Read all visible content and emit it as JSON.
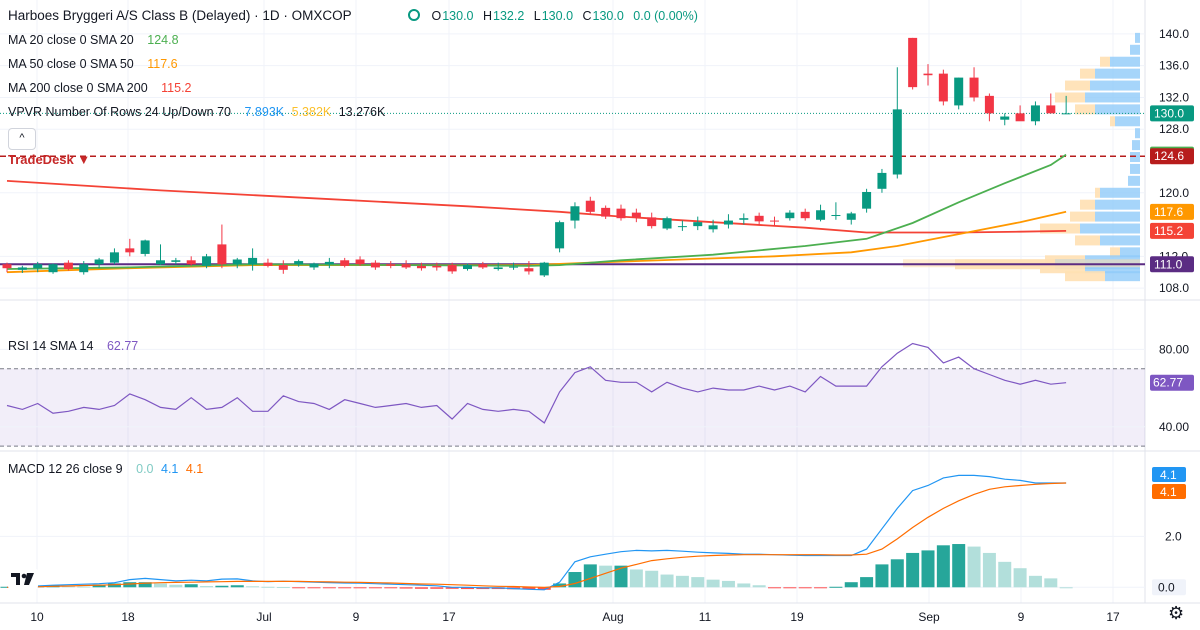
{
  "header": {
    "title": "Harboes Bryggeri A/S Class B (Delayed) · 1D · OMXCOP",
    "ohlc": [
      {
        "label": "O",
        "value": "130.0"
      },
      {
        "label": "H",
        "value": "132.2"
      },
      {
        "label": "L",
        "value": "130.0"
      },
      {
        "label": "C",
        "value": "130.0"
      }
    ],
    "change": "0.0 (0.00%)"
  },
  "legend": {
    "ma20": {
      "label": "MA 20 close 0 SMA 20",
      "value": "124.8",
      "color": "#4caf50"
    },
    "ma50": {
      "label": "MA 50 close 0 SMA 50",
      "value": "117.6",
      "color": "#ff9800"
    },
    "ma200": {
      "label": "MA 200 close 0 SMA 200",
      "value": "115.2",
      "color": "#f44336"
    },
    "vpvr": {
      "label": "VPVR Number Of Rows 24 Up/Down 70",
      "up": "7.893K",
      "down": "5.382K",
      "total": "13.276K"
    },
    "rsi": {
      "label": "RSI 14 SMA 14",
      "value": "62.77",
      "color": "#7e57c2"
    },
    "macd": {
      "label": "MACD 12 26 close 9",
      "hist": "0.0",
      "macd": "4.1",
      "signal": "4.1"
    }
  },
  "collapse_label": "^",
  "tradedesk_label": "TradeDesk ▼",
  "colors": {
    "up": "#089981",
    "down": "#f23645",
    "macd": "#2196f3",
    "signal": "#ff6d00",
    "rsi": "#7e57c2",
    "vp_up": "#90caf9",
    "vp_down": "#ffe0b2"
  },
  "chart_data": {
    "type": "candlestick",
    "title": "Harboes Bryggeri A/S Class B (Delayed) · 1D · OMXCOP",
    "x_tick_labels": [
      "10",
      "18",
      "Jul",
      "9",
      "17",
      "Aug",
      "11",
      "19",
      "Sep",
      "9",
      "17"
    ],
    "y_tick_labels": [
      "140.0",
      "136.0",
      "132.0",
      "128.0",
      "120.0",
      "112.0",
      "108.0"
    ],
    "ylim": [
      106.5,
      141.5
    ],
    "price_axis_badges": [
      {
        "text": "130.0",
        "value": 130.0,
        "color": "#089981"
      },
      {
        "text": "124.8",
        "value": 124.8,
        "color": "#4caf50"
      },
      {
        "text": "124.6",
        "value": 124.6,
        "color": "#b71c1c"
      },
      {
        "text": "117.6",
        "value": 117.6,
        "color": "#ff9800"
      },
      {
        "text": "115.2",
        "value": 115.2,
        "color": "#f44336"
      },
      {
        "text": "111.0",
        "value": 111.0,
        "color": "#5b2c83"
      }
    ],
    "horizontal_lines": [
      {
        "name": "TradeDesk",
        "value": 124.6,
        "style": "dashed",
        "color": "#b71c1c"
      },
      {
        "name": "level",
        "value": 111.0,
        "style": "solid",
        "color": "#5b2c83"
      }
    ],
    "candles": [
      {
        "o": 111.0,
        "h": 111.2,
        "l": 110.0,
        "c": 110.5
      },
      {
        "o": 110.3,
        "h": 110.8,
        "l": 109.9,
        "c": 110.6
      },
      {
        "o": 110.5,
        "h": 111.3,
        "l": 110.0,
        "c": 111.0
      },
      {
        "o": 110.0,
        "h": 111.1,
        "l": 109.8,
        "c": 111.0
      },
      {
        "o": 111.2,
        "h": 111.5,
        "l": 110.2,
        "c": 110.4
      },
      {
        "o": 110.0,
        "h": 111.4,
        "l": 109.7,
        "c": 111.0
      },
      {
        "o": 111.0,
        "h": 111.8,
        "l": 110.5,
        "c": 111.6
      },
      {
        "o": 111.2,
        "h": 113.0,
        "l": 111.0,
        "c": 112.5
      },
      {
        "o": 113.0,
        "h": 114.2,
        "l": 112.0,
        "c": 112.5
      },
      {
        "o": 112.3,
        "h": 114.1,
        "l": 112.0,
        "c": 114.0
      },
      {
        "o": 111.0,
        "h": 113.5,
        "l": 110.9,
        "c": 111.5
      },
      {
        "o": 111.3,
        "h": 111.8,
        "l": 111.0,
        "c": 111.5
      },
      {
        "o": 111.5,
        "h": 112.0,
        "l": 110.8,
        "c": 111.0
      },
      {
        "o": 110.8,
        "h": 112.3,
        "l": 110.5,
        "c": 112.0
      },
      {
        "o": 113.5,
        "h": 116.0,
        "l": 110.5,
        "c": 111.0
      },
      {
        "o": 111.0,
        "h": 111.8,
        "l": 110.5,
        "c": 111.6
      },
      {
        "o": 111.0,
        "h": 113.0,
        "l": 110.2,
        "c": 111.8
      },
      {
        "o": 111.2,
        "h": 111.7,
        "l": 110.6,
        "c": 110.8
      },
      {
        "o": 110.9,
        "h": 111.5,
        "l": 109.8,
        "c": 110.3
      },
      {
        "o": 111.0,
        "h": 111.6,
        "l": 110.7,
        "c": 111.4
      },
      {
        "o": 110.6,
        "h": 111.2,
        "l": 110.3,
        "c": 111.1
      },
      {
        "o": 111.0,
        "h": 111.8,
        "l": 110.5,
        "c": 111.3
      },
      {
        "o": 111.5,
        "h": 111.8,
        "l": 110.6,
        "c": 110.8
      },
      {
        "o": 111.6,
        "h": 112.0,
        "l": 110.8,
        "c": 111.0
      },
      {
        "o": 111.2,
        "h": 111.5,
        "l": 110.3,
        "c": 110.6
      },
      {
        "o": 111.0,
        "h": 111.4,
        "l": 110.5,
        "c": 110.8
      },
      {
        "o": 111.0,
        "h": 111.5,
        "l": 110.4,
        "c": 110.6
      },
      {
        "o": 110.8,
        "h": 111.2,
        "l": 110.2,
        "c": 110.5
      },
      {
        "o": 110.8,
        "h": 111.2,
        "l": 110.2,
        "c": 110.6
      },
      {
        "o": 110.9,
        "h": 111.2,
        "l": 109.8,
        "c": 110.1
      },
      {
        "o": 110.4,
        "h": 111.1,
        "l": 110.2,
        "c": 110.9
      },
      {
        "o": 111.0,
        "h": 111.3,
        "l": 110.4,
        "c": 110.6
      },
      {
        "o": 110.4,
        "h": 111.2,
        "l": 110.2,
        "c": 110.6
      },
      {
        "o": 110.6,
        "h": 111.2,
        "l": 110.3,
        "c": 110.7
      },
      {
        "o": 110.5,
        "h": 111.4,
        "l": 109.7,
        "c": 110.1
      },
      {
        "o": 109.6,
        "h": 111.3,
        "l": 109.4,
        "c": 111.2
      },
      {
        "o": 113.0,
        "h": 116.5,
        "l": 112.5,
        "c": 116.3
      },
      {
        "o": 116.5,
        "h": 118.8,
        "l": 115.5,
        "c": 118.3
      },
      {
        "o": 119.0,
        "h": 119.5,
        "l": 117.2,
        "c": 117.6
      },
      {
        "o": 118.1,
        "h": 118.4,
        "l": 116.7,
        "c": 117.0
      },
      {
        "o": 118.0,
        "h": 118.5,
        "l": 116.5,
        "c": 116.8
      },
      {
        "o": 117.5,
        "h": 118.0,
        "l": 116.3,
        "c": 116.9
      },
      {
        "o": 116.9,
        "h": 117.5,
        "l": 115.5,
        "c": 115.8
      },
      {
        "o": 115.5,
        "h": 117.0,
        "l": 115.3,
        "c": 116.8
      },
      {
        "o": 115.7,
        "h": 116.5,
        "l": 115.2,
        "c": 115.8
      },
      {
        "o": 115.8,
        "h": 117.0,
        "l": 115.3,
        "c": 116.3
      },
      {
        "o": 115.4,
        "h": 116.6,
        "l": 115.0,
        "c": 115.9
      },
      {
        "o": 116.0,
        "h": 117.3,
        "l": 115.5,
        "c": 116.5
      },
      {
        "o": 116.6,
        "h": 117.4,
        "l": 116.0,
        "c": 116.8
      },
      {
        "o": 117.1,
        "h": 117.5,
        "l": 116.0,
        "c": 116.4
      },
      {
        "o": 116.5,
        "h": 117.0,
        "l": 115.8,
        "c": 116.4
      },
      {
        "o": 116.8,
        "h": 117.8,
        "l": 116.5,
        "c": 117.5
      },
      {
        "o": 117.6,
        "h": 118.0,
        "l": 116.5,
        "c": 116.8
      },
      {
        "o": 116.6,
        "h": 118.5,
        "l": 116.4,
        "c": 117.8
      },
      {
        "o": 117.2,
        "h": 118.8,
        "l": 116.6,
        "c": 117.2
      },
      {
        "o": 116.6,
        "h": 117.6,
        "l": 116.0,
        "c": 117.4
      },
      {
        "o": 118.0,
        "h": 120.5,
        "l": 117.5,
        "c": 120.1
      },
      {
        "o": 120.5,
        "h": 123.0,
        "l": 120.0,
        "c": 122.5
      },
      {
        "o": 122.3,
        "h": 135.8,
        "l": 121.8,
        "c": 130.5
      },
      {
        "o": 139.5,
        "h": 139.5,
        "l": 133.0,
        "c": 133.3
      },
      {
        "o": 135.0,
        "h": 136.2,
        "l": 133.5,
        "c": 134.8
      },
      {
        "o": 135.0,
        "h": 135.5,
        "l": 131.0,
        "c": 131.5
      },
      {
        "o": 131.0,
        "h": 134.5,
        "l": 130.5,
        "c": 134.5
      },
      {
        "o": 134.5,
        "h": 135.8,
        "l": 131.5,
        "c": 132.0
      },
      {
        "o": 132.2,
        "h": 132.5,
        "l": 129.0,
        "c": 130.0
      },
      {
        "o": 129.2,
        "h": 130.0,
        "l": 128.5,
        "c": 129.6
      },
      {
        "o": 130.0,
        "h": 131.0,
        "l": 129.2,
        "c": 129.0
      },
      {
        "o": 129.0,
        "h": 131.5,
        "l": 128.5,
        "c": 131.0
      },
      {
        "o": 131.0,
        "h": 132.5,
        "l": 130.0,
        "c": 130.0
      },
      {
        "o": 130.0,
        "h": 132.2,
        "l": 130.0,
        "c": 130.0
      }
    ],
    "ma20": [
      [
        0,
        110.4
      ],
      [
        8,
        110.6
      ],
      [
        16,
        111.0
      ],
      [
        26,
        110.9
      ],
      [
        34,
        110.8
      ],
      [
        36,
        110.9
      ],
      [
        40,
        111.5
      ],
      [
        46,
        112.2
      ],
      [
        52,
        113.3
      ],
      [
        56,
        114.2
      ],
      [
        59,
        116.2
      ],
      [
        62,
        118.8
      ],
      [
        65,
        121.2
      ],
      [
        68,
        123.5
      ],
      [
        69,
        124.8
      ]
    ],
    "ma50": [
      [
        0,
        110.0
      ],
      [
        8,
        110.5
      ],
      [
        16,
        110.9
      ],
      [
        26,
        110.9
      ],
      [
        34,
        110.9
      ],
      [
        38,
        111.2
      ],
      [
        44,
        111.6
      ],
      [
        50,
        112.0
      ],
      [
        55,
        112.5
      ],
      [
        58,
        113.3
      ],
      [
        62,
        114.8
      ],
      [
        66,
        116.3
      ],
      [
        69,
        117.6
      ]
    ],
    "ma200": [
      [
        0,
        121.5
      ],
      [
        10,
        120.3
      ],
      [
        20,
        119.3
      ],
      [
        30,
        118.3
      ],
      [
        36,
        117.6
      ],
      [
        40,
        117.0
      ],
      [
        46,
        116.3
      ],
      [
        52,
        115.6
      ],
      [
        56,
        115.0
      ],
      [
        62,
        115.0
      ],
      [
        66,
        115.1
      ],
      [
        69,
        115.2
      ]
    ],
    "volume_profile": [
      {
        "price": 139.5,
        "up": 0.05,
        "down": 0.0
      },
      {
        "price": 138.0,
        "up": 0.1,
        "down": 0.0
      },
      {
        "price": 136.5,
        "up": 0.3,
        "down": 0.1
      },
      {
        "price": 135.0,
        "up": 0.45,
        "down": 0.15
      },
      {
        "price": 133.5,
        "up": 0.5,
        "down": 0.25
      },
      {
        "price": 132.0,
        "up": 0.55,
        "down": 0.3
      },
      {
        "price": 130.5,
        "up": 0.45,
        "down": 0.2
      },
      {
        "price": 129.0,
        "up": 0.25,
        "down": 0.05
      },
      {
        "price": 127.5,
        "up": 0.05,
        "down": 0.0
      },
      {
        "price": 126.0,
        "up": 0.08,
        "down": 0.0
      },
      {
        "price": 124.5,
        "up": 0.1,
        "down": 0.0
      },
      {
        "price": 123.0,
        "up": 0.1,
        "down": 0.0
      },
      {
        "price": 121.5,
        "up": 0.12,
        "down": 0.0
      },
      {
        "price": 120.0,
        "up": 0.4,
        "down": 0.05
      },
      {
        "price": 118.5,
        "up": 0.45,
        "down": 0.15
      },
      {
        "price": 117.0,
        "up": 0.45,
        "down": 0.25
      },
      {
        "price": 115.5,
        "up": 0.6,
        "down": 0.4
      },
      {
        "price": 114.0,
        "up": 0.4,
        "down": 0.25
      },
      {
        "price": 112.5,
        "up": 0.2,
        "down": 0.1
      },
      {
        "price": 111.5,
        "up": 0.55,
        "down": 0.4
      },
      {
        "price": 111.0,
        "up": 0.85,
        "down": 1.0
      },
      {
        "price": 110.5,
        "up": 0.55,
        "down": 0.45
      },
      {
        "price": 109.5,
        "up": 0.35,
        "down": 0.4
      }
    ],
    "rsi": {
      "name": "RSI",
      "ylim": [
        28,
        90
      ],
      "y_tick_labels": [
        "80.00",
        "40.00"
      ],
      "bands": [
        70,
        30
      ],
      "values": [
        51,
        49,
        52,
        47,
        48,
        50,
        49,
        51,
        57,
        54,
        50,
        49,
        55,
        49,
        50,
        55,
        48,
        48,
        56,
        53,
        52,
        49,
        54,
        52,
        50,
        51,
        52,
        50,
        51,
        44,
        52,
        49,
        48,
        49,
        48,
        42,
        58,
        68,
        71,
        64,
        63,
        63,
        58,
        63,
        60,
        58,
        60,
        59,
        59,
        61,
        59,
        61,
        58,
        66,
        61,
        61,
        61,
        71,
        78,
        83,
        81,
        73,
        76,
        70,
        67,
        64,
        62,
        64,
        62,
        62.77
      ]
    },
    "macd": {
      "name": "MACD",
      "ylim": [
        -0.5,
        5.2
      ],
      "y_tick_labels": [
        "2.0",
        "0.0"
      ],
      "macd_line": [
        0.0,
        0.02,
        0.05,
        0.08,
        0.1,
        0.12,
        0.14,
        0.18,
        0.3,
        0.35,
        0.3,
        0.25,
        0.28,
        0.25,
        0.32,
        0.33,
        0.25,
        0.22,
        0.24,
        0.22,
        0.2,
        0.18,
        0.17,
        0.16,
        0.14,
        0.12,
        0.1,
        0.08,
        0.06,
        0.0,
        0.0,
        -0.02,
        -0.02,
        -0.05,
        -0.08,
        -0.1,
        0.2,
        1.0,
        1.2,
        1.3,
        1.4,
        1.45,
        1.43,
        1.45,
        1.42,
        1.38,
        1.35,
        1.33,
        1.3,
        1.3,
        1.28,
        1.26,
        1.25,
        1.25,
        1.25,
        1.25,
        1.5,
        2.3,
        3.1,
        3.8,
        4.0,
        4.3,
        4.4,
        4.4,
        4.35,
        4.25,
        4.2,
        4.1,
        4.1,
        4.1
      ],
      "signal_line": [
        0.0,
        0.01,
        0.02,
        0.04,
        0.05,
        0.07,
        0.08,
        0.1,
        0.13,
        0.16,
        0.18,
        0.19,
        0.2,
        0.21,
        0.22,
        0.23,
        0.23,
        0.23,
        0.23,
        0.23,
        0.22,
        0.21,
        0.2,
        0.19,
        0.18,
        0.17,
        0.15,
        0.13,
        0.12,
        0.1,
        0.08,
        0.06,
        0.04,
        0.03,
        0.01,
        0.0,
        0.03,
        0.15,
        0.35,
        0.55,
        0.75,
        0.9,
        1.05,
        1.12,
        1.18,
        1.22,
        1.25,
        1.27,
        1.28,
        1.28,
        1.28,
        1.28,
        1.28,
        1.28,
        1.27,
        1.27,
        1.3,
        1.5,
        1.9,
        2.35,
        2.75,
        3.1,
        3.4,
        3.65,
        3.85,
        3.95,
        4.0,
        4.05,
        4.08,
        4.1
      ],
      "histogram": [
        0.02,
        0.05,
        0.06,
        0.08,
        0.05,
        0.03,
        0.1,
        0.15,
        0.2,
        0.2,
        0.15,
        0.1,
        0.12,
        0.05,
        0.06,
        0.08,
        0.04,
        0.02,
        0.01,
        -0.02,
        -0.02,
        -0.03,
        -0.04,
        -0.04,
        -0.04,
        -0.04,
        -0.05,
        -0.06,
        -0.06,
        -0.06,
        -0.07,
        -0.07,
        -0.07,
        -0.08,
        -0.08,
        -0.1,
        0.15,
        0.6,
        0.9,
        0.85,
        0.85,
        0.7,
        0.65,
        0.5,
        0.45,
        0.4,
        0.3,
        0.25,
        0.15,
        0.08,
        -0.02,
        -0.02,
        -0.03,
        -0.03,
        0.02,
        0.2,
        0.4,
        0.9,
        1.1,
        1.35,
        1.45,
        1.65,
        1.7,
        1.6,
        1.35,
        1.0,
        0.75,
        0.45,
        0.35,
        0.0
      ]
    }
  }
}
